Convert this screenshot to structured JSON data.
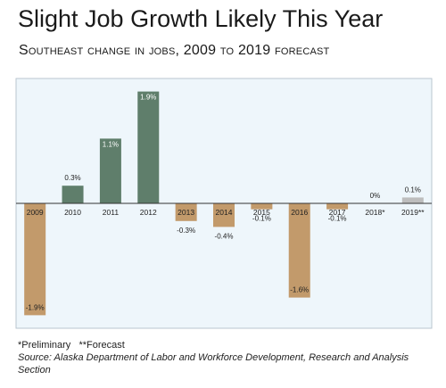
{
  "title": "Slight Job Growth Likely This Year",
  "subtitle": "Southeast change in jobs, 2009 to 2019 forecast",
  "chart_data": {
    "type": "bar",
    "categories": [
      "2009",
      "2010",
      "2011",
      "2012",
      "2013",
      "2014",
      "2015",
      "2016",
      "2017",
      "2018*",
      "2019**"
    ],
    "values": [
      -1.9,
      0.3,
      1.1,
      1.9,
      -0.3,
      -0.4,
      -0.1,
      -1.6,
      -0.1,
      0.0,
      0.1
    ],
    "labels": [
      "-1.9%",
      "0.3%",
      "1.1%",
      "1.9%",
      "-0.3%",
      "-0.4%",
      "-0.1%",
      "-1.6%",
      "-0.1%",
      "0%",
      "0.1%"
    ],
    "ylim": [
      -2.0,
      2.0
    ],
    "grid": false,
    "colors": {
      "positive": "#5f7e6b",
      "negative": "#c29a6b",
      "forecast": "#bdbdbd",
      "plot_background": "#eef6fb",
      "axis": "#333333"
    }
  },
  "notes": {
    "footnote": "*Preliminary   **Forecast",
    "source": "Source: Alaska Department of Labor and Workforce Development, Research and Analysis Section"
  }
}
